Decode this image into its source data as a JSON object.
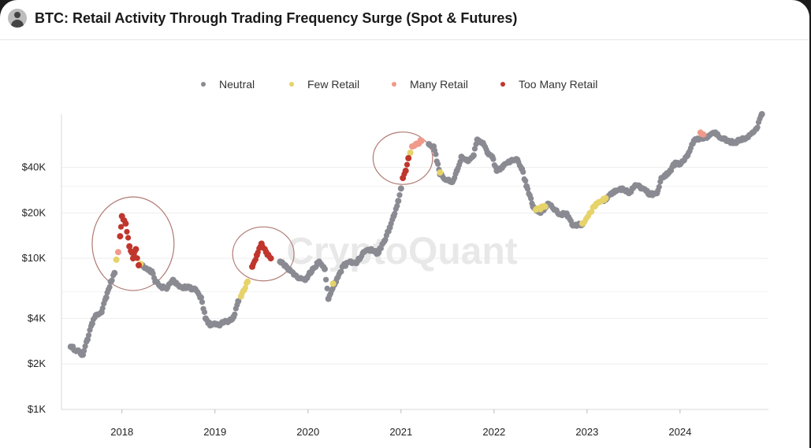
{
  "header": {
    "title": "BTC: Retail Activity Through Trading Frequency Surge (Spot & Futures)",
    "avatar_icon": "user-avatar-icon"
  },
  "watermark": "CryptoQuant",
  "chart_data": {
    "type": "scatter",
    "title": "BTC: Retail Activity Through Trading Frequency Surge (Spot & Futures)",
    "y_scale": "log",
    "y_ticks": [
      "$1K",
      "$2K",
      "$4K",
      "$10K",
      "$20K",
      "$40K"
    ],
    "x_ticks": [
      "2018",
      "2019",
      "2020",
      "2021",
      "2022",
      "2023",
      "2024"
    ],
    "ylim": [
      1000,
      90000
    ],
    "xlim": [
      2017.35,
      2024.95
    ],
    "grid": "horizontal",
    "legend_position": "top-center",
    "legend": [
      {
        "name": "Neutral",
        "color": "#8a8a92"
      },
      {
        "name": "Few Retail",
        "color": "#e6d36a"
      },
      {
        "name": "Many Retail",
        "color": "#ef9a8a"
      },
      {
        "name": "Too Many Retail",
        "color": "#c0362c"
      }
    ],
    "series": [
      {
        "name": "Neutral",
        "color": "#8a8a92",
        "points": [
          [
            2017.45,
            2600
          ],
          [
            2017.52,
            2450
          ],
          [
            2017.58,
            2300
          ],
          [
            2017.63,
            2900
          ],
          [
            2017.68,
            3700
          ],
          [
            2017.72,
            4200
          ],
          [
            2017.78,
            4400
          ],
          [
            2017.83,
            5500
          ],
          [
            2017.88,
            7000
          ],
          [
            2017.92,
            8000
          ],
          [
            2018.22,
            9000
          ],
          [
            2018.27,
            8500
          ],
          [
            2018.32,
            8200
          ],
          [
            2018.36,
            7000
          ],
          [
            2018.42,
            6500
          ],
          [
            2018.48,
            6300
          ],
          [
            2018.55,
            7200
          ],
          [
            2018.62,
            6500
          ],
          [
            2018.7,
            6400
          ],
          [
            2018.78,
            6300
          ],
          [
            2018.85,
            5500
          ],
          [
            2018.9,
            4000
          ],
          [
            2018.95,
            3600
          ],
          [
            2019.0,
            3700
          ],
          [
            2019.05,
            3600
          ],
          [
            2019.1,
            3800
          ],
          [
            2019.15,
            3850
          ],
          [
            2019.2,
            4100
          ],
          [
            2019.25,
            5200
          ],
          [
            2019.7,
            9500
          ],
          [
            2019.78,
            8600
          ],
          [
            2019.85,
            7800
          ],
          [
            2019.92,
            7400
          ],
          [
            2019.97,
            7200
          ],
          [
            2020.05,
            8500
          ],
          [
            2020.12,
            9500
          ],
          [
            2020.18,
            8500
          ],
          [
            2020.22,
            5400
          ],
          [
            2020.3,
            7000
          ],
          [
            2020.38,
            8900
          ],
          [
            2020.45,
            9500
          ],
          [
            2020.52,
            9300
          ],
          [
            2020.6,
            11000
          ],
          [
            2020.68,
            11500
          ],
          [
            2020.75,
            10800
          ],
          [
            2020.82,
            13000
          ],
          [
            2020.88,
            16000
          ],
          [
            2020.92,
            19000
          ],
          [
            2020.97,
            24000
          ],
          [
            2021.0,
            29000
          ],
          [
            2021.3,
            57000
          ],
          [
            2021.35,
            55000
          ],
          [
            2021.42,
            36000
          ],
          [
            2021.5,
            33000
          ],
          [
            2021.55,
            32000
          ],
          [
            2021.6,
            38000
          ],
          [
            2021.65,
            47000
          ],
          [
            2021.72,
            44000
          ],
          [
            2021.78,
            48000
          ],
          [
            2021.82,
            61000
          ],
          [
            2021.88,
            58000
          ],
          [
            2021.93,
            50000
          ],
          [
            2021.98,
            47000
          ],
          [
            2022.03,
            38000
          ],
          [
            2022.1,
            41000
          ],
          [
            2022.18,
            44000
          ],
          [
            2022.25,
            45000
          ],
          [
            2022.3,
            39000
          ],
          [
            2022.35,
            30000
          ],
          [
            2022.42,
            22000
          ],
          [
            2022.5,
            20000
          ],
          [
            2022.58,
            23000
          ],
          [
            2022.65,
            21000
          ],
          [
            2022.72,
            19500
          ],
          [
            2022.78,
            19800
          ],
          [
            2022.85,
            16500
          ],
          [
            2022.95,
            16800
          ],
          [
            2023.18,
            24000
          ],
          [
            2023.3,
            28000
          ],
          [
            2023.38,
            29000
          ],
          [
            2023.45,
            27000
          ],
          [
            2023.52,
            30500
          ],
          [
            2023.6,
            29000
          ],
          [
            2023.68,
            26500
          ],
          [
            2023.75,
            27000
          ],
          [
            2023.8,
            34000
          ],
          [
            2023.88,
            37000
          ],
          [
            2023.95,
            43000
          ],
          [
            2024.0,
            42000
          ],
          [
            2024.08,
            48000
          ],
          [
            2024.15,
            60000
          ],
          [
            2024.3,
            64000
          ],
          [
            2024.38,
            68000
          ],
          [
            2024.45,
            62000
          ],
          [
            2024.52,
            60000
          ],
          [
            2024.58,
            58000
          ],
          [
            2024.65,
            61000
          ],
          [
            2024.72,
            63000
          ],
          [
            2024.78,
            68000
          ],
          [
            2024.82,
            72000
          ],
          [
            2024.88,
            90000
          ]
        ]
      },
      {
        "name": "Few Retail",
        "color": "#e6d36a",
        "points": [
          [
            2017.94,
            9800
          ],
          [
            2018.2,
            9200
          ],
          [
            2019.28,
            5600
          ],
          [
            2019.35,
            7000
          ],
          [
            2020.27,
            6800
          ],
          [
            2021.1,
            50000
          ],
          [
            2021.42,
            37000
          ],
          [
            2022.45,
            21000
          ],
          [
            2022.55,
            22000
          ],
          [
            2022.95,
            17000
          ],
          [
            2023.1,
            23000
          ],
          [
            2023.2,
            25000
          ]
        ]
      },
      {
        "name": "Many Retail",
        "color": "#ef9a8a",
        "points": [
          [
            2017.96,
            11000
          ],
          [
            2021.12,
            55000
          ],
          [
            2021.22,
            60000
          ],
          [
            2024.22,
            68000
          ],
          [
            2024.25,
            66000
          ]
        ]
      },
      {
        "name": "Too Many Retail",
        "color": "#c0362c",
        "points": [
          [
            2017.98,
            14000
          ],
          [
            2018.0,
            19000
          ],
          [
            2018.04,
            17000
          ],
          [
            2018.08,
            12000
          ],
          [
            2018.12,
            10000
          ],
          [
            2018.15,
            11500
          ],
          [
            2018.18,
            9000
          ],
          [
            2019.4,
            8800
          ],
          [
            2019.45,
            10500
          ],
          [
            2019.5,
            12500
          ],
          [
            2019.55,
            11000
          ],
          [
            2019.6,
            10000
          ],
          [
            2021.02,
            34000
          ],
          [
            2021.05,
            38000
          ],
          [
            2021.08,
            46000
          ]
        ]
      }
    ],
    "annotations": [
      {
        "type": "circle",
        "x": 2018.12,
        "y": 12500,
        "rx": 0.44,
        "ry_ratio": 1.3
      },
      {
        "type": "circle",
        "x": 2019.52,
        "y": 10700,
        "rx": 0.33,
        "ry_ratio": 1.0
      },
      {
        "type": "circle",
        "x": 2021.02,
        "y": 46000,
        "rx": 0.32,
        "ry_ratio": 1.0
      }
    ]
  }
}
